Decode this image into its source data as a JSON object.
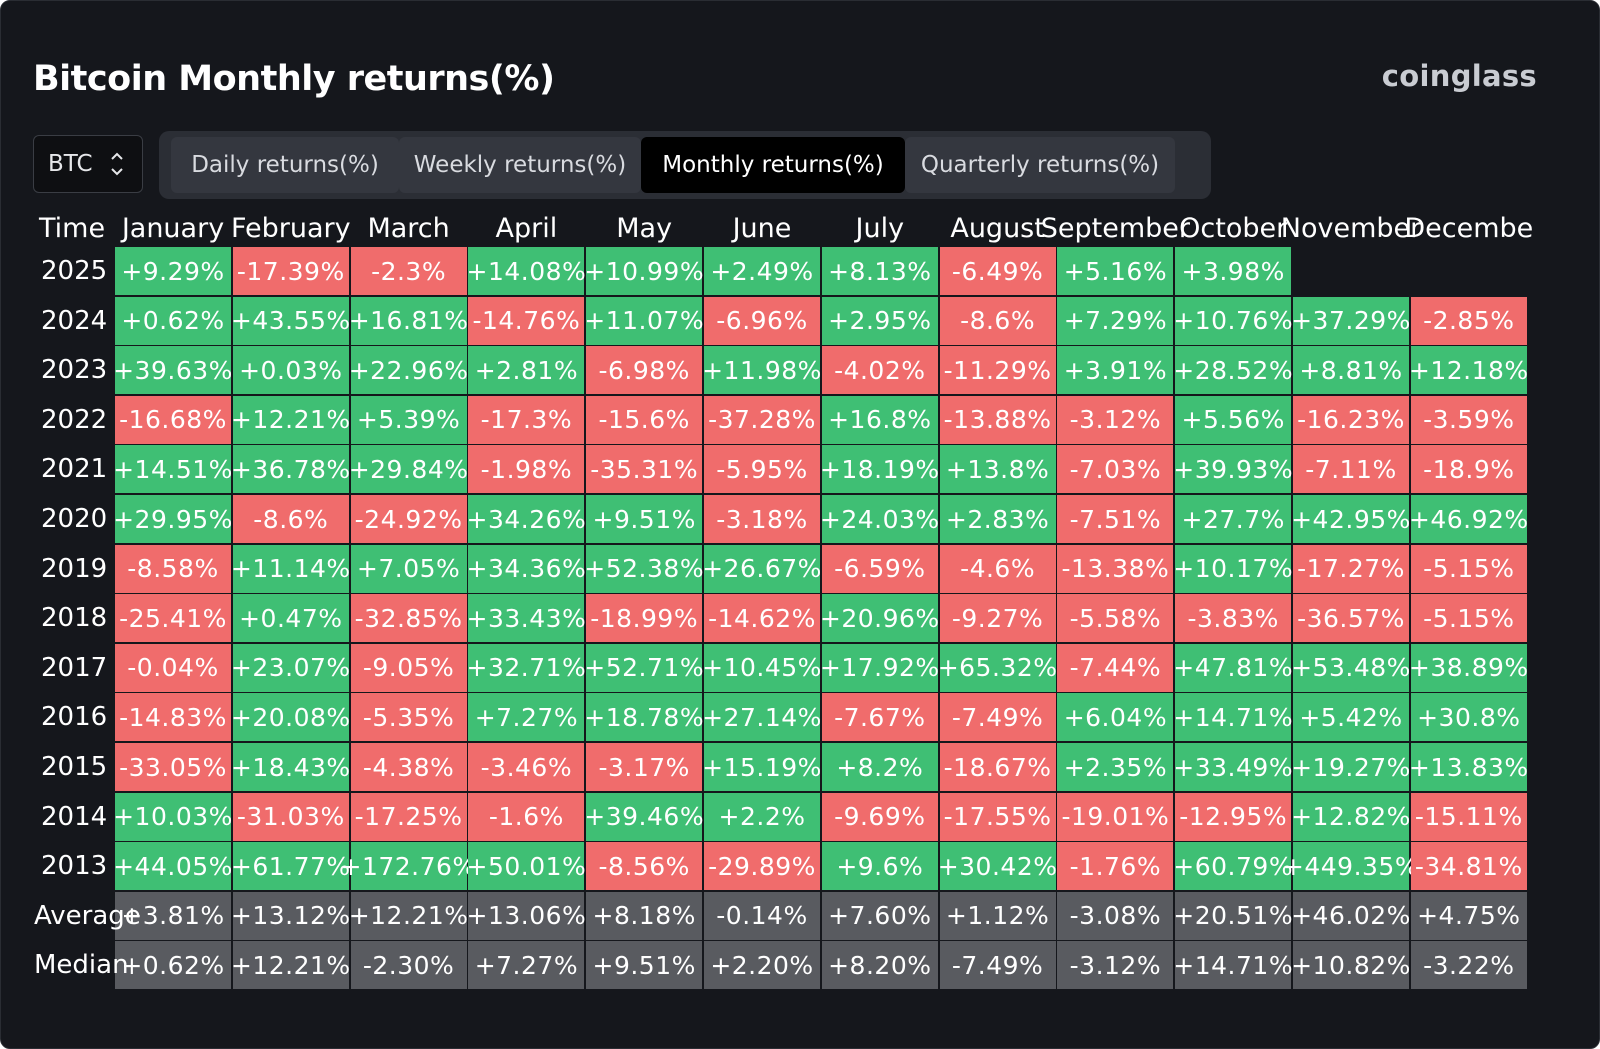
{
  "title": "Bitcoin Monthly returns(%)",
  "logo": "coinglass",
  "coin_select": {
    "value": "BTC"
  },
  "tabs": [
    {
      "label": "Daily returns(%)",
      "active": false
    },
    {
      "label": "Weekly returns(%)",
      "active": false
    },
    {
      "label": "Monthly returns(%)",
      "active": true
    },
    {
      "label": "Quarterly returns(%)",
      "active": false
    }
  ],
  "colors": {
    "positive": "#3fbf74",
    "negative": "#f06c6c",
    "summary": "#595b60",
    "background": "#15171c"
  },
  "table": {
    "time_header": "Time",
    "months": [
      "January",
      "February",
      "March",
      "April",
      "May",
      "June",
      "July",
      "August",
      "September",
      "October",
      "November",
      "Decembe"
    ],
    "rows": [
      {
        "year": "2025",
        "values": [
          "+9.29%",
          "-17.39%",
          "-2.3%",
          "+14.08%",
          "+10.99%",
          "+2.49%",
          "+8.13%",
          "-6.49%",
          "+5.16%",
          "+3.98%",
          "",
          ""
        ]
      },
      {
        "year": "2024",
        "values": [
          "+0.62%",
          "+43.55%",
          "+16.81%",
          "-14.76%",
          "+11.07%",
          "-6.96%",
          "+2.95%",
          "-8.6%",
          "+7.29%",
          "+10.76%",
          "+37.29%",
          "-2.85%"
        ]
      },
      {
        "year": "2023",
        "values": [
          "+39.63%",
          "+0.03%",
          "+22.96%",
          "+2.81%",
          "-6.98%",
          "+11.98%",
          "-4.02%",
          "-11.29%",
          "+3.91%",
          "+28.52%",
          "+8.81%",
          "+12.18%"
        ]
      },
      {
        "year": "2022",
        "values": [
          "-16.68%",
          "+12.21%",
          "+5.39%",
          "-17.3%",
          "-15.6%",
          "-37.28%",
          "+16.8%",
          "-13.88%",
          "-3.12%",
          "+5.56%",
          "-16.23%",
          "-3.59%"
        ]
      },
      {
        "year": "2021",
        "values": [
          "+14.51%",
          "+36.78%",
          "+29.84%",
          "-1.98%",
          "-35.31%",
          "-5.95%",
          "+18.19%",
          "+13.8%",
          "-7.03%",
          "+39.93%",
          "-7.11%",
          "-18.9%"
        ]
      },
      {
        "year": "2020",
        "values": [
          "+29.95%",
          "-8.6%",
          "-24.92%",
          "+34.26%",
          "+9.51%",
          "-3.18%",
          "+24.03%",
          "+2.83%",
          "-7.51%",
          "+27.7%",
          "+42.95%",
          "+46.92%"
        ]
      },
      {
        "year": "2019",
        "values": [
          "-8.58%",
          "+11.14%",
          "+7.05%",
          "+34.36%",
          "+52.38%",
          "+26.67%",
          "-6.59%",
          "-4.6%",
          "-13.38%",
          "+10.17%",
          "-17.27%",
          "-5.15%"
        ]
      },
      {
        "year": "2018",
        "values": [
          "-25.41%",
          "+0.47%",
          "-32.85%",
          "+33.43%",
          "-18.99%",
          "-14.62%",
          "+20.96%",
          "-9.27%",
          "-5.58%",
          "-3.83%",
          "-36.57%",
          "-5.15%"
        ]
      },
      {
        "year": "2017",
        "values": [
          "-0.04%",
          "+23.07%",
          "-9.05%",
          "+32.71%",
          "+52.71%",
          "+10.45%",
          "+17.92%",
          "+65.32%",
          "-7.44%",
          "+47.81%",
          "+53.48%",
          "+38.89%"
        ]
      },
      {
        "year": "2016",
        "values": [
          "-14.83%",
          "+20.08%",
          "-5.35%",
          "+7.27%",
          "+18.78%",
          "+27.14%",
          "-7.67%",
          "-7.49%",
          "+6.04%",
          "+14.71%",
          "+5.42%",
          "+30.8%"
        ]
      },
      {
        "year": "2015",
        "values": [
          "-33.05%",
          "+18.43%",
          "-4.38%",
          "-3.46%",
          "-3.17%",
          "+15.19%",
          "+8.2%",
          "-18.67%",
          "+2.35%",
          "+33.49%",
          "+19.27%",
          "+13.83%"
        ]
      },
      {
        "year": "2014",
        "values": [
          "+10.03%",
          "-31.03%",
          "-17.25%",
          "-1.6%",
          "+39.46%",
          "+2.2%",
          "-9.69%",
          "-17.55%",
          "-19.01%",
          "-12.95%",
          "+12.82%",
          "-15.11%"
        ]
      },
      {
        "year": "2013",
        "values": [
          "+44.05%",
          "+61.77%",
          "+172.76%",
          "+50.01%",
          "-8.56%",
          "-29.89%",
          "+9.6%",
          "+30.42%",
          "-1.76%",
          "+60.79%",
          "+449.35%",
          "-34.81%"
        ]
      }
    ],
    "summary_rows": [
      {
        "label": "Average",
        "values": [
          "+3.81%",
          "+13.12%",
          "+12.21%",
          "+13.06%",
          "+8.18%",
          "-0.14%",
          "+7.60%",
          "+1.12%",
          "-3.08%",
          "+20.51%",
          "+46.02%",
          "+4.75%"
        ]
      },
      {
        "label": "Median",
        "values": [
          "+0.62%",
          "+12.21%",
          "-2.30%",
          "+7.27%",
          "+9.51%",
          "+2.20%",
          "+8.20%",
          "-7.49%",
          "-3.12%",
          "+14.71%",
          "+10.82%",
          "-3.22%"
        ]
      }
    ]
  }
}
